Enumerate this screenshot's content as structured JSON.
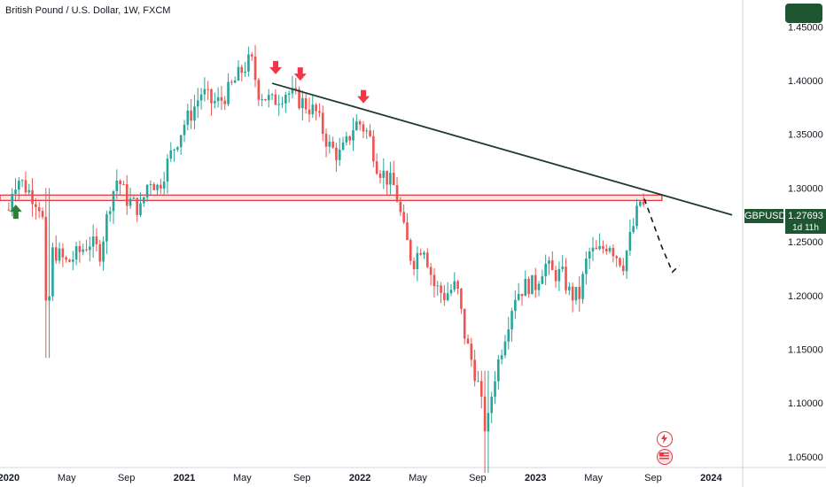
{
  "header": {
    "title": "British Pound / U.S. Dollar, 1W, FXCM"
  },
  "price_badge": {
    "symbol": "GBPUSD",
    "price": "1.27693",
    "countdown": "1d 11h"
  },
  "icons": {
    "top_button": "top-right-button",
    "flash": "flash-icon",
    "flag": "us-flag-icon"
  },
  "colors": {
    "up": "#26a69a",
    "down": "#ef5350",
    "resistance": "#e53a45",
    "trendline": "#1f3b2a",
    "badge": "#1e5631"
  },
  "chart_data": {
    "type": "candlestick",
    "y_ticks": [
      "1.45000",
      "1.40000",
      "1.35000",
      "1.30000",
      "1.25000",
      "1.20000",
      "1.15000",
      "1.10000",
      "1.05000"
    ],
    "y_tick_values": [
      1.45,
      1.4,
      1.35,
      1.3,
      1.25,
      1.2,
      1.15,
      1.1,
      1.05
    ],
    "ylim": [
      1.04,
      1.475
    ],
    "x_ticks": [
      {
        "label": "2020",
        "pos": 0.0,
        "year": true
      },
      {
        "label": "May",
        "pos": 0.33,
        "year": false
      },
      {
        "label": "Sep",
        "pos": 0.67,
        "year": false
      },
      {
        "label": "2021",
        "pos": 1.0,
        "year": true
      },
      {
        "label": "May",
        "pos": 1.33,
        "year": false
      },
      {
        "label": "Sep",
        "pos": 1.67,
        "year": false
      },
      {
        "label": "2022",
        "pos": 2.0,
        "year": true
      },
      {
        "label": "May",
        "pos": 2.33,
        "year": false
      },
      {
        "label": "Sep",
        "pos": 2.67,
        "year": false
      },
      {
        "label": "2023",
        "pos": 3.0,
        "year": true
      },
      {
        "label": "May",
        "pos": 3.33,
        "year": false
      },
      {
        "label": "Sep",
        "pos": 3.67,
        "year": false
      },
      {
        "label": "2024",
        "pos": 4.0,
        "year": true
      }
    ],
    "xlim": [
      -0.05,
      4.18
    ],
    "price_path": [
      [
        0.0,
        1.28
      ],
      [
        0.02,
        1.3
      ],
      [
        0.05,
        1.31
      ],
      [
        0.1,
        1.3
      ],
      [
        0.15,
        1.29
      ],
      [
        0.19,
        1.28
      ],
      [
        0.22,
        1.15
      ],
      [
        0.24,
        1.24
      ],
      [
        0.27,
        1.24
      ],
      [
        0.33,
        1.23
      ],
      [
        0.4,
        1.24
      ],
      [
        0.46,
        1.25
      ],
      [
        0.52,
        1.24
      ],
      [
        0.58,
        1.29
      ],
      [
        0.62,
        1.31
      ],
      [
        0.67,
        1.29
      ],
      [
        0.75,
        1.28
      ],
      [
        0.8,
        1.31
      ],
      [
        0.85,
        1.3
      ],
      [
        0.92,
        1.33
      ],
      [
        1.0,
        1.36
      ],
      [
        1.04,
        1.37
      ],
      [
        1.1,
        1.39
      ],
      [
        1.15,
        1.38
      ],
      [
        1.2,
        1.38
      ],
      [
        1.25,
        1.39
      ],
      [
        1.33,
        1.41
      ],
      [
        1.38,
        1.42
      ],
      [
        1.42,
        1.39
      ],
      [
        1.5,
        1.38
      ],
      [
        1.58,
        1.39
      ],
      [
        1.67,
        1.38
      ],
      [
        1.75,
        1.37
      ],
      [
        1.82,
        1.34
      ],
      [
        1.88,
        1.33
      ],
      [
        1.92,
        1.34
      ],
      [
        1.97,
        1.36
      ],
      [
        2.0,
        1.36
      ],
      [
        2.05,
        1.35
      ],
      [
        2.1,
        1.32
      ],
      [
        2.15,
        1.31
      ],
      [
        2.2,
        1.3
      ],
      [
        2.25,
        1.26
      ],
      [
        2.3,
        1.23
      ],
      [
        2.36,
        1.25
      ],
      [
        2.42,
        1.21
      ],
      [
        2.48,
        1.2
      ],
      [
        2.55,
        1.21
      ],
      [
        2.6,
        1.16
      ],
      [
        2.67,
        1.12
      ],
      [
        2.72,
        1.07
      ],
      [
        2.76,
        1.12
      ],
      [
        2.82,
        1.16
      ],
      [
        2.88,
        1.2
      ],
      [
        2.95,
        1.21
      ],
      [
        3.0,
        1.21
      ],
      [
        3.05,
        1.23
      ],
      [
        3.1,
        1.22
      ],
      [
        3.15,
        1.22
      ],
      [
        3.2,
        1.2
      ],
      [
        3.25,
        1.2
      ],
      [
        3.3,
        1.24
      ],
      [
        3.36,
        1.24
      ],
      [
        3.42,
        1.25
      ],
      [
        3.45,
        1.24
      ],
      [
        3.5,
        1.23
      ],
      [
        3.55,
        1.26
      ],
      [
        3.6,
        1.29
      ],
      [
        3.62,
        1.28
      ]
    ],
    "resistance_zone": {
      "y_low": 1.2885,
      "y_high": 1.2935,
      "x_start": -0.05,
      "x_end": 3.72
    },
    "trendline": [
      [
        1.5,
        1.3975
      ],
      [
        4.12,
        1.275
      ]
    ],
    "projection": [
      [
        3.62,
        1.29
      ],
      [
        3.72,
        1.245
      ],
      [
        3.78,
        1.222
      ],
      [
        3.82,
        1.228
      ]
    ],
    "down_markers": [
      [
        1.52,
        1.41
      ],
      [
        1.66,
        1.404
      ],
      [
        2.02,
        1.383
      ]
    ],
    "up_markers": [
      [
        0.04,
        1.278
      ]
    ]
  }
}
